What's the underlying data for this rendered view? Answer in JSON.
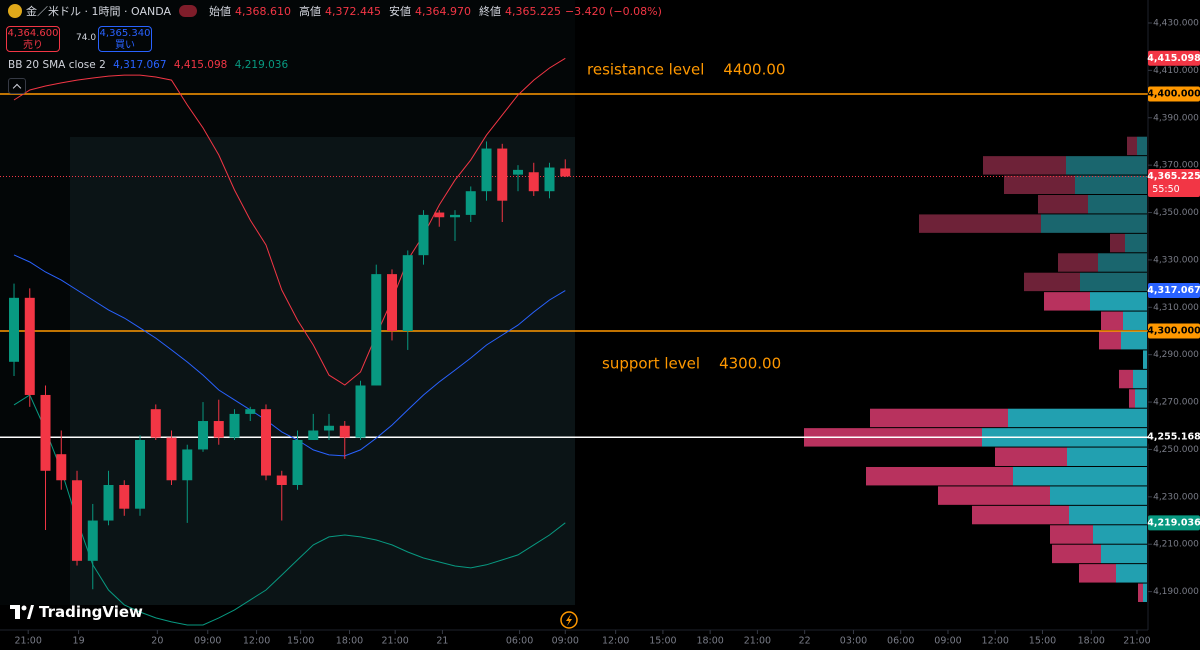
{
  "header": {
    "symbol": "金／米ドル · 1時間 · OANDA",
    "ohlc": [
      {
        "label": "始値",
        "value": "4,368.610"
      },
      {
        "label": "高値",
        "value": "4,372.445"
      },
      {
        "label": "安値",
        "value": "4,364.970"
      },
      {
        "label": "終値",
        "value": "4,365.225"
      }
    ],
    "change": "−3.420 (−0.08%)",
    "sell": {
      "price": "4,364.600",
      "label": "売り"
    },
    "spread": "74.0",
    "buy": {
      "price": "4,365.340",
      "label": "買い"
    },
    "logo": "TradingView"
  },
  "chart_data": {
    "type": "candlestick",
    "up_color": "#089981",
    "down_color": "#f23645",
    "open": [
      4287,
      4314,
      4273,
      4248,
      4237,
      4203,
      4220,
      4235,
      4225,
      4267,
      4255,
      4237,
      4250,
      4262,
      4255,
      4265,
      4267,
      4239,
      4235,
      4254,
      4258,
      4260,
      4255,
      4277,
      4324,
      4300,
      4332,
      4350,
      4348,
      4349,
      4359,
      4377,
      4366,
      4367,
      4359,
      4368.61
    ],
    "high": [
      4320,
      4318,
      4277,
      4258,
      4241,
      4227,
      4241,
      4237,
      4256,
      4269,
      4258,
      4252,
      4270,
      4271,
      4267,
      4268,
      4269,
      4241,
      4258,
      4265,
      4265,
      4262,
      4279,
      4328,
      4326,
      4334,
      4351,
      4351,
      4351,
      4361,
      4380,
      4379,
      4370,
      4371,
      4371,
      4372.445
    ],
    "low": [
      4281,
      4268,
      4216,
      4233,
      4201,
      4191,
      4218,
      4222,
      4222,
      4254,
      4235,
      4219,
      4249,
      4252,
      4254,
      4262,
      4237,
      4220,
      4233,
      4254,
      4254,
      4246,
      4254,
      4277,
      4296,
      4292,
      4328,
      4344,
      4338,
      4346,
      4355,
      4346,
      4359,
      4357,
      4356,
      4364.97
    ],
    "close": [
      4314,
      4273,
      4241,
      4237,
      4203,
      4220,
      4235,
      4225,
      4254,
      4255,
      4237,
      4250,
      4262,
      4255,
      4265,
      4267,
      4239,
      4235,
      4254,
      4258,
      4260,
      4255,
      4277,
      4324,
      4300,
      4332,
      4349,
      4348,
      4349,
      4359,
      4377,
      4355,
      4368,
      4359,
      4369,
      4365.225
    ],
    "xlim": [
      -0.89,
      72
    ],
    "xticks": [
      {
        "value": 0.9,
        "label": "21:00"
      },
      {
        "value": 4.1,
        "label": "19"
      },
      {
        "value": 9.1,
        "label": "20"
      },
      {
        "value": 12.3,
        "label": "09:00"
      },
      {
        "value": 15.4,
        "label": "12:00"
      },
      {
        "value": 18.2,
        "label": "15:00"
      },
      {
        "value": 21.3,
        "label": "18:00"
      },
      {
        "value": 24.2,
        "label": "21:00"
      },
      {
        "value": 27.2,
        "label": "21"
      },
      {
        "value": 32.1,
        "label": "06:00"
      },
      {
        "value": 35.0,
        "label": "09:00"
      },
      {
        "value": 38.2,
        "label": "12:00"
      },
      {
        "value": 41.2,
        "label": "15:00"
      },
      {
        "value": 44.2,
        "label": "18:00"
      },
      {
        "value": 47.2,
        "label": "21:00"
      },
      {
        "value": 50.2,
        "label": "22"
      },
      {
        "value": 53.3,
        "label": "03:00"
      },
      {
        "value": 56.3,
        "label": "06:00"
      },
      {
        "value": 59.3,
        "label": "09:00"
      },
      {
        "value": 62.3,
        "label": "12:00"
      },
      {
        "value": 65.3,
        "label": "15:00"
      },
      {
        "value": 68.4,
        "label": "18:00"
      },
      {
        "value": 71.3,
        "label": "21:00"
      }
    ],
    "ylim": [
      4173.8,
      4439.7
    ],
    "yticks": [
      {
        "value": 4190,
        "label": "4,190.000"
      },
      {
        "value": 4210,
        "label": "4,210.000"
      },
      {
        "value": 4230,
        "label": "4,230.000"
      },
      {
        "value": 4250,
        "label": "4,250.000"
      },
      {
        "value": 4270,
        "label": "4,270.000"
      },
      {
        "value": 4290,
        "label": "4,290.000"
      },
      {
        "value": 4310,
        "label": "4,310.000"
      },
      {
        "value": 4330,
        "label": "4,330.000"
      },
      {
        "value": 4350,
        "label": "4,350.000"
      },
      {
        "value": 4370,
        "label": "4,370.000"
      },
      {
        "value": 4390,
        "label": "4,390.000"
      },
      {
        "value": 4410,
        "label": "4,410.000"
      },
      {
        "value": 4430,
        "label": "4,430.000"
      }
    ],
    "indicator": "BB 20 SMA close 2",
    "lines": [
      {
        "color": "#2962ff",
        "legend_label": "4,317.067",
        "values": [
          4332.1,
          4329.1,
          4324.9,
          4321.5,
          4317.3,
          4313.1,
          4308.9,
          4305.5,
          4301.3,
          4297.0,
          4292.0,
          4286.9,
          4281.4,
          4275.1,
          4270.9,
          4266.7,
          4262.4,
          4257.4,
          4254.0,
          4249.8,
          4247.7,
          4247.3,
          4249.8,
          4254.8,
          4260.3,
          4266.7,
          4273.0,
          4278.5,
          4283.5,
          4288.6,
          4294.1,
          4298.3,
          4302.5,
          4308.0,
          4313.1,
          4317.067
        ]
      },
      {
        "color": "#f23645",
        "legend_label": "4,415.098",
        "values": [
          4397.5,
          4401.7,
          4403.4,
          4404.7,
          4405.9,
          4406.8,
          4407.6,
          4408.0,
          4408.0,
          4407.2,
          4405.9,
          4395.4,
          4385.7,
          4374.3,
          4359.5,
          4346.8,
          4336.3,
          4317.3,
          4304.6,
          4294.1,
          4281.4,
          4277.2,
          4282.7,
          4298.3,
          4313.1,
          4330.0,
          4340.5,
          4353.2,
          4363.7,
          4372.2,
          4382.7,
          4391.2,
          4399.6,
          4405.9,
          4411.0,
          4415.098
        ]
      },
      {
        "color": "#089981",
        "legend_label": "4,219.036",
        "values": [
          4268.8,
          4273.0,
          4258.2,
          4241.3,
          4220.2,
          4201.3,
          4190.7,
          4184.4,
          4181.4,
          4178.9,
          4177.2,
          4175.9,
          4175.9,
          4178.9,
          4182.3,
          4186.5,
          4190.7,
          4197.0,
          4203.4,
          4209.7,
          4213.1,
          4213.9,
          4213.1,
          4211.8,
          4209.7,
          4206.7,
          4204.2,
          4202.5,
          4200.8,
          4200.0,
          4201.3,
          4203.4,
          4205.5,
          4209.7,
          4213.9,
          4219.036
        ]
      }
    ],
    "levels": [
      {
        "value": 4400,
        "color": "#ff9800",
        "annotation": "resistance level    4400.00"
      },
      {
        "value": 4300,
        "color": "#ff9800",
        "annotation": "support level    4300.00"
      },
      {
        "value": 4255.168,
        "color": "#ffffff"
      }
    ],
    "current_price": {
      "value": 4365.225,
      "color": "#f23645"
    },
    "price_labels": [
      {
        "value": 4415.098,
        "label": "4,415.098",
        "bg": "#f23645",
        "text_color": "#ffffff"
      },
      {
        "value": 4400,
        "label": "4,400.000",
        "bg": "#ff9800",
        "text_color": "#000000"
      },
      {
        "value": 4365.225,
        "label": "4,365.225",
        "countdown": "55:50",
        "bg": "#f23645",
        "text_color": "#ffffff"
      },
      {
        "value": 4317.067,
        "label": "4,317.067",
        "bg": "#2962ff",
        "text_color": "#ffffff"
      },
      {
        "value": 4300,
        "label": "4,300.000",
        "bg": "#ff9800",
        "text_color": "#000000"
      },
      {
        "value": 4255.168,
        "label": "4,255.168",
        "bg": "#000000",
        "text_color": "#ffffff"
      },
      {
        "value": 4219.036,
        "label": "4,219.036",
        "bg": "#089981",
        "text_color": "#ffffff"
      }
    ],
    "volume_profile": {
      "bins": [
        4185.2,
        4193.4,
        4201.6,
        4209.8,
        4218.0,
        4226.2,
        4234.4,
        4242.6,
        4250.8,
        4259.0,
        4267.2,
        4275.4,
        4283.6,
        4291.8,
        4300.0,
        4308.2,
        4316.4,
        4324.6,
        4332.8,
        4341.0,
        4349.2,
        4357.4,
        4365.6,
        4373.8,
        4382.0
      ],
      "buy": [
        4,
        31,
        46,
        54,
        78,
        97,
        134,
        80,
        165,
        139,
        12,
        14,
        4,
        26,
        24,
        57,
        67,
        49,
        22,
        106,
        59,
        72,
        81,
        10
      ],
      "sell": [
        5,
        37,
        49,
        43,
        97,
        112,
        147,
        72,
        178,
        138,
        6,
        14,
        0,
        22,
        22,
        46,
        56,
        40,
        15,
        122,
        50,
        71,
        83,
        10
      ],
      "value_area": [
        4185.2,
        4316.4
      ],
      "buy_color": "#22a0b0",
      "sell_color": "#b8325e",
      "buy_color_outside": "#1a666e",
      "sell_color_outside": "#6e2238"
    }
  }
}
